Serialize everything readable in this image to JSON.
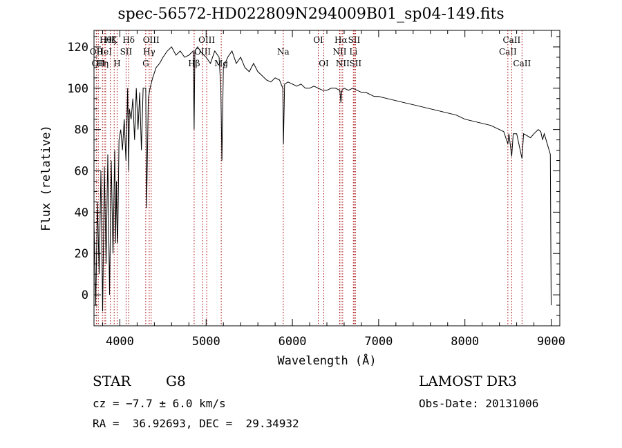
{
  "header": {
    "title": "spec-56572-HD022809N294009B01_sp04-149.fits"
  },
  "info": {
    "obj_class": "STAR",
    "subclass": "G8",
    "cz_line": "cz = −7.7 ± 6.0 km/s",
    "radec_line": "RA =  36.92693, DEC =  29.34932",
    "survey": "LAMOST DR3",
    "obs_date_line": "Obs-Date: 20131006"
  },
  "colors": {
    "spectrum": "#000000",
    "line_markers": "#a40000",
    "axes": "#000000"
  },
  "chart_data": {
    "type": "line",
    "title": "spec-56572-HD022809N294009B01_sp04-149.fits",
    "xlabel": "Wavelength (Å)",
    "ylabel": "Flux (relative)",
    "xlim": [
      3700,
      9100
    ],
    "ylim": [
      -15,
      128
    ],
    "x_ticks": [
      4000,
      5000,
      6000,
      7000,
      8000,
      9000
    ],
    "y_ticks": [
      0,
      20,
      40,
      60,
      80,
      100,
      120
    ],
    "x_tick_labels": [
      "4000",
      "5000",
      "6000",
      "7000",
      "8000",
      "9000"
    ],
    "y_tick_labels": [
      "0",
      "20",
      "40",
      "60",
      "80",
      "100",
      "120"
    ],
    "series": [
      {
        "name": "flux",
        "x": [
          3700,
          3720,
          3740,
          3760,
          3780,
          3800,
          3820,
          3840,
          3860,
          3880,
          3900,
          3920,
          3940,
          3950,
          3960,
          3968,
          3975,
          3990,
          4010,
          4030,
          4050,
          4070,
          4090,
          4102,
          4110,
          4130,
          4150,
          4170,
          4190,
          4210,
          4230,
          4250,
          4270,
          4290,
          4300,
          4310,
          4330,
          4350,
          4380,
          4420,
          4460,
          4500,
          4550,
          4600,
          4650,
          4700,
          4750,
          4800,
          4850,
          4861,
          4870,
          4900,
          4950,
          5000,
          5050,
          5100,
          5150,
          5170,
          5183,
          5200,
          5250,
          5300,
          5350,
          5400,
          5450,
          5500,
          5550,
          5600,
          5650,
          5700,
          5750,
          5800,
          5850,
          5889,
          5896,
          5910,
          5950,
          6000,
          6050,
          6100,
          6150,
          6200,
          6250,
          6300,
          6350,
          6400,
          6450,
          6500,
          6550,
          6563,
          6575,
          6600,
          6650,
          6700,
          6750,
          6800,
          6850,
          6900,
          6950,
          7000,
          7100,
          7200,
          7300,
          7400,
          7500,
          7600,
          7700,
          7800,
          7900,
          8000,
          8100,
          8200,
          8300,
          8400,
          8450,
          8498,
          8510,
          8542,
          8560,
          8600,
          8662,
          8680,
          8720,
          8760,
          8800,
          8850,
          8880,
          8900,
          8920,
          8990,
          9000
        ],
        "values": [
          35,
          -5,
          45,
          10,
          60,
          -8,
          62,
          15,
          68,
          0,
          65,
          20,
          70,
          25,
          55,
          30,
          25,
          75,
          80,
          70,
          85,
          65,
          100,
          60,
          90,
          85,
          95,
          75,
          100,
          80,
          98,
          70,
          100,
          100,
          100,
          42,
          95,
          100,
          105,
          110,
          112,
          115,
          118,
          120,
          116,
          118,
          115,
          116,
          118,
          80,
          118,
          120,
          117,
          115,
          112,
          118,
          115,
          100,
          65,
          110,
          115,
          118,
          112,
          115,
          110,
          108,
          112,
          108,
          106,
          104,
          103,
          105,
          104,
          100,
          73,
          102,
          103,
          102,
          101,
          102,
          100,
          100,
          101,
          100,
          99,
          99,
          100,
          100,
          99,
          93,
          99,
          100,
          99,
          100,
          99,
          98,
          98,
          97,
          96,
          96,
          95,
          94,
          93,
          92,
          91,
          90,
          89,
          88,
          87,
          85,
          84,
          83,
          82,
          80,
          79,
          73,
          78,
          67,
          78,
          78,
          66,
          78,
          77,
          76,
          78,
          80,
          79,
          75,
          78,
          68,
          -5
        ]
      }
    ],
    "line_markers": [
      {
        "wavelength": 3727,
        "label": "OII",
        "row": 2
      },
      {
        "wavelength": 3750,
        "label": "OII",
        "row": 3
      },
      {
        "wavelength": 3798,
        "label": "Hη",
        "row": 3
      },
      {
        "wavelength": 3819,
        "label": "HeI",
        "row": 2
      },
      {
        "wavelength": 3835,
        "label": "Hθ",
        "row": 1
      },
      {
        "wavelength": 3889,
        "label": "Hζ",
        "row": 1
      },
      {
        "wavelength": 3934,
        "label": "K",
        "row": 1
      },
      {
        "wavelength": 3968,
        "label": "H",
        "row": 3
      },
      {
        "wavelength": 4072,
        "label": "SII",
        "row": 2
      },
      {
        "wavelength": 4102,
        "label": "Hδ",
        "row": 1
      },
      {
        "wavelength": 4300,
        "label": "G",
        "row": 3
      },
      {
        "wavelength": 4340,
        "label": "Hγ",
        "row": 2
      },
      {
        "wavelength": 4363,
        "label": "OIII",
        "row": 1
      },
      {
        "wavelength": 4861,
        "label": "Hβ",
        "row": 3
      },
      {
        "wavelength": 4959,
        "label": "OIII",
        "row": 2
      },
      {
        "wavelength": 5007,
        "label": "OIII",
        "row": 1
      },
      {
        "wavelength": 5175,
        "label": "Mg",
        "row": 3
      },
      {
        "wavelength": 5894,
        "label": "Na",
        "row": 2
      },
      {
        "wavelength": 6300,
        "label": "OI",
        "row": 1
      },
      {
        "wavelength": 6364,
        "label": "OI",
        "row": 3
      },
      {
        "wavelength": 6548,
        "label": "NII",
        "row": 2
      },
      {
        "wavelength": 6563,
        "label": "Hα",
        "row": 1
      },
      {
        "wavelength": 6583,
        "label": "NII",
        "row": 3
      },
      {
        "wavelength": 6707,
        "label": "Li",
        "row": 2
      },
      {
        "wavelength": 6716,
        "label": "SII",
        "row": 1
      },
      {
        "wavelength": 6731,
        "label": "SII",
        "row": 3
      },
      {
        "wavelength": 8498,
        "label": "CaII",
        "row": 2
      },
      {
        "wavelength": 8542,
        "label": "CaII",
        "row": 1
      },
      {
        "wavelength": 8662,
        "label": "CaII",
        "row": 3
      }
    ]
  }
}
